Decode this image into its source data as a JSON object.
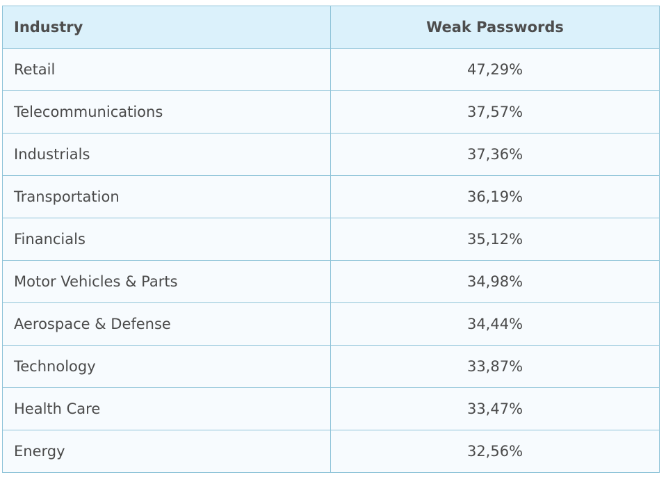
{
  "table": {
    "headers": [
      "Industry",
      "Weak Passwords"
    ],
    "rows": [
      {
        "industry": "Retail",
        "weak_passwords": "47,29%"
      },
      {
        "industry": "Telecommunications",
        "weak_passwords": "37,57%"
      },
      {
        "industry": "Industrials",
        "weak_passwords": "37,36%"
      },
      {
        "industry": "Transportation",
        "weak_passwords": "36,19%"
      },
      {
        "industry": "Financials",
        "weak_passwords": "35,12%"
      },
      {
        "industry": "Motor Vehicles & Parts",
        "weak_passwords": "34,98%"
      },
      {
        "industry": "Aerospace & Defense",
        "weak_passwords": "34,44%"
      },
      {
        "industry": "Technology",
        "weak_passwords": "33,87%"
      },
      {
        "industry": "Health Care",
        "weak_passwords": "33,47%"
      },
      {
        "industry": "Energy",
        "weak_passwords": "32,56%"
      }
    ]
  },
  "colors": {
    "header_bg": "#dbf1fb",
    "row_bg": "#f7fbfe",
    "border": "#8ec3d8",
    "text": "#4a4a4a"
  }
}
